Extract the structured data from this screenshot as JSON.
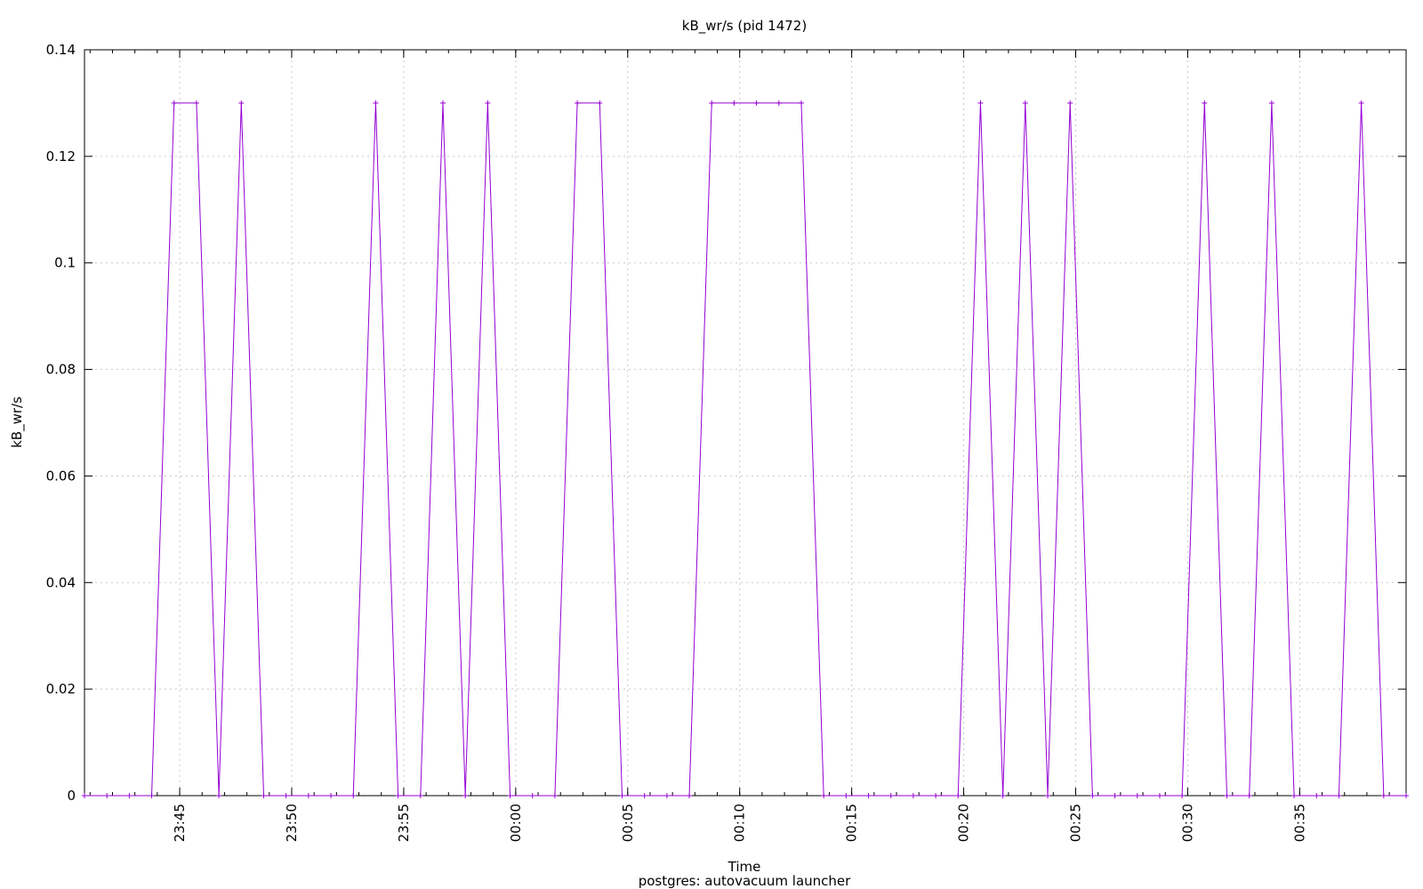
{
  "chart_data": {
    "type": "line",
    "title": "kB_wr/s (pid 1472)",
    "xlabel": "Time",
    "subtitle": "postgres: autovacuum launcher",
    "ylabel": "kB_wr/s",
    "grid": true,
    "series_color": "#9400d3",
    "ylim": [
      0,
      0.14
    ],
    "yticks": [
      "0",
      "0.02",
      "0.04",
      "0.06",
      "0.08",
      "0.1",
      "0.12",
      "0.14"
    ],
    "xlim": [
      "23:40:45",
      "00:39:45"
    ],
    "xticks": [
      "23:45",
      "23:50",
      "23:55",
      "00:00",
      "00:05",
      "00:10",
      "00:15",
      "00:20",
      "00:25",
      "00:30",
      "00:35"
    ],
    "series": [
      {
        "x": [
          "23:40:45",
          "23:41:45",
          "23:42:45",
          "23:43:45",
          "23:44:45",
          "23:45:45",
          "23:46:45",
          "23:47:45",
          "23:48:45",
          "23:49:45",
          "23:50:45",
          "23:51:45",
          "23:52:45",
          "23:53:45",
          "23:54:45",
          "23:55:45",
          "23:56:45",
          "23:57:45",
          "23:58:45",
          "23:59:45",
          "00:00:45",
          "00:01:45",
          "00:02:45",
          "00:03:45",
          "00:04:45",
          "00:05:45",
          "00:06:45",
          "00:07:45",
          "00:08:45",
          "00:09:45",
          "00:10:45",
          "00:11:45",
          "00:12:45",
          "00:13:45",
          "00:14:45",
          "00:15:45",
          "00:16:45",
          "00:17:45",
          "00:18:45",
          "00:19:45",
          "00:20:45",
          "00:21:45",
          "00:22:45",
          "00:23:45",
          "00:24:45",
          "00:25:45",
          "00:26:45",
          "00:27:45",
          "00:28:45",
          "00:29:45",
          "00:30:45",
          "00:31:45",
          "00:32:45",
          "00:33:45",
          "00:34:45",
          "00:35:45",
          "00:36:45",
          "00:37:45",
          "00:38:45",
          "00:39:45"
        ],
        "values": [
          0,
          0,
          0,
          0,
          0.13,
          0.13,
          0,
          0.13,
          0,
          0,
          0,
          0,
          0,
          0.13,
          0,
          0,
          0.13,
          0,
          0.13,
          0,
          0,
          0,
          0.13,
          0.13,
          0,
          0,
          0,
          0,
          0.13,
          0.13,
          0.13,
          0.13,
          0.13,
          0,
          0,
          0,
          0,
          0,
          0,
          0,
          0.13,
          0,
          0.13,
          0,
          0.13,
          0,
          0,
          0,
          0,
          0,
          0.13,
          0,
          0,
          0.13,
          0,
          0,
          0,
          0.13,
          0,
          0
        ]
      }
    ]
  }
}
